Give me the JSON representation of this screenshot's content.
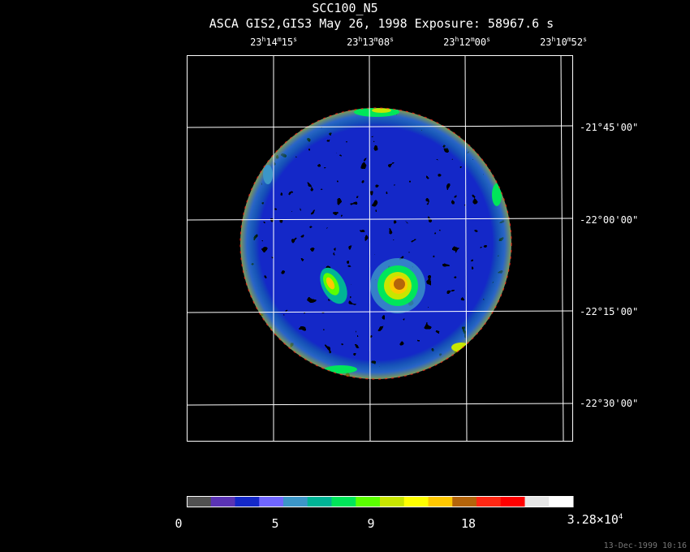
{
  "header": {
    "title": "SCC100_N5",
    "subtitle": "ASCA GIS2,GIS3 May 26, 1998 Exposure: 58967.6 s"
  },
  "ra_labels": [
    {
      "h": "23",
      "m": "14",
      "s": "15"
    },
    {
      "h": "23",
      "m": "13",
      "s": "08"
    },
    {
      "h": "23",
      "m": "12",
      "s": "00"
    },
    {
      "h": "23",
      "m": "10",
      "s": "52"
    }
  ],
  "dec_labels": [
    "-21°45'00\"",
    "-22°00'00\"",
    "-22°15'00\"",
    "-22°30'00\""
  ],
  "colorbar": {
    "colors": [
      "#505050",
      "#5a33b4",
      "#1428c8",
      "#7066ff",
      "#3c96c8",
      "#00b496",
      "#00e65a",
      "#5aff00",
      "#c8e600",
      "#ffff00",
      "#ffc800",
      "#b4640a",
      "#ff2814",
      "#ff0000",
      "#e6e6e6",
      "#ffffff"
    ],
    "tick_labels": [
      "0",
      "5",
      "9",
      "18"
    ],
    "max_label_base": "3.28×10",
    "max_label_exp": "4"
  },
  "footer": {
    "timestamp": "13-Dec-1999 10:16"
  }
}
